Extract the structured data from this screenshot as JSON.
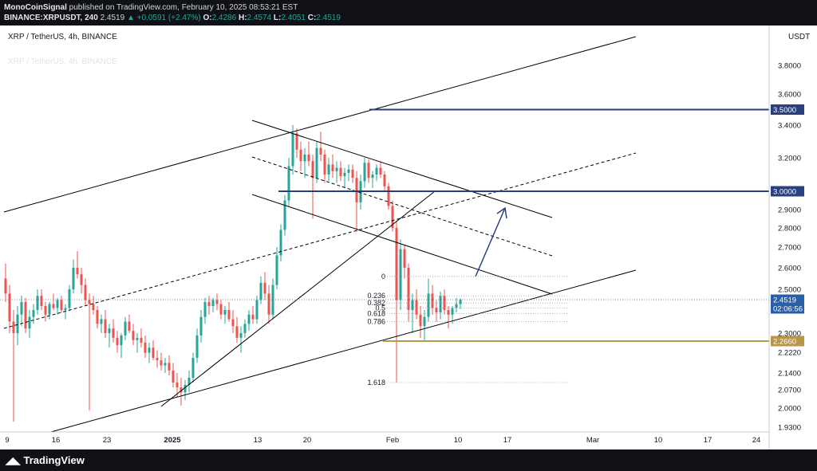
{
  "header": {
    "publisher": "MonoCoinSignal",
    "publish_text": "published on TradingView.com, February 10, 2025 08:53:21 EST",
    "symbol": "BINANCE:XRPUSDT, 240",
    "last": "2.4519",
    "change": "▲ +0.0591 (+2.47%)",
    "o_label": "O:",
    "o": "2.4286",
    "h_label": "H:",
    "h": "2.4574",
    "l_label": "L:",
    "l": "2.4051",
    "c_label": "C:",
    "c": "2.4519"
  },
  "legend": {
    "title": "XRP / TetherUS, 4h, BINANCE",
    "faded": "XRP / TetherUS, 4h, BINANCE"
  },
  "footer": {
    "brand": "TradingView"
  },
  "colors": {
    "up": "#26a69a",
    "down": "#ef5350",
    "level": "#2a3f7e",
    "support": "#b8964a",
    "trend": "#000000"
  },
  "chart_data": {
    "type": "candlestick",
    "title": "XRP / TetherUS, 4h, BINANCE",
    "currency": "USDT",
    "y_ticks": [
      3.8,
      3.6,
      3.4,
      3.2,
      2.9,
      2.8,
      2.7,
      2.6,
      2.5,
      2.3,
      2.222,
      2.14,
      2.07,
      2.0,
      1.93
    ],
    "y_tick_labels": [
      "3.8000",
      "3.6000",
      "3.4000",
      "3.2000",
      "2.9000",
      "2.8000",
      "2.7000",
      "2.6000",
      "2.5000",
      "2.3000",
      "2.2220",
      "2.1400",
      "2.0700",
      "2.0000",
      "1.9300"
    ],
    "x_ticks": [
      "9",
      "16",
      "23",
      "2025",
      "13",
      "20",
      "Feb",
      "10",
      "17",
      "Mar",
      "10",
      "17",
      "24"
    ],
    "price_labels": [
      {
        "label": "3.5000",
        "value": 3.5
      },
      {
        "label": "3.0000",
        "value": 3.0
      },
      {
        "label": "2.4519",
        "sub": "02:06:56",
        "value": 2.4519
      },
      {
        "label": "2.2660",
        "value": 2.266
      }
    ],
    "horizontal_levels": [
      {
        "name": "resistance-3.5",
        "value": 3.5
      },
      {
        "name": "resistance-3.0",
        "value": 3.0
      },
      {
        "name": "support-2.266",
        "value": 2.266
      }
    ],
    "fibonacci": [
      {
        "label": "0",
        "value": 2.56
      },
      {
        "label": "0.236",
        "value": 2.47
      },
      {
        "label": "0.382",
        "value": 2.435
      },
      {
        "label": "0.5",
        "value": 2.41
      },
      {
        "label": "0.618",
        "value": 2.385
      },
      {
        "label": "0.786",
        "value": 2.35
      },
      {
        "label": "1.618",
        "value": 2.1
      }
    ],
    "ohlc": [
      [
        2.55,
        2.62,
        2.44,
        2.48
      ],
      [
        2.48,
        2.52,
        2.3,
        2.35
      ],
      [
        2.35,
        2.4,
        1.95,
        2.3
      ],
      [
        2.3,
        2.42,
        2.25,
        2.38
      ],
      [
        2.38,
        2.47,
        2.33,
        2.44
      ],
      [
        2.44,
        2.46,
        2.3,
        2.32
      ],
      [
        2.32,
        2.4,
        2.28,
        2.37
      ],
      [
        2.37,
        2.43,
        2.34,
        2.4
      ],
      [
        2.4,
        2.5,
        2.38,
        2.47
      ],
      [
        2.47,
        2.5,
        2.4,
        2.42
      ],
      [
        2.42,
        2.44,
        2.35,
        2.38
      ],
      [
        2.38,
        2.44,
        2.36,
        2.43
      ],
      [
        2.43,
        2.48,
        2.4,
        2.41
      ],
      [
        2.41,
        2.46,
        2.38,
        2.45
      ],
      [
        2.45,
        2.47,
        2.39,
        2.4
      ],
      [
        2.4,
        2.43,
        2.36,
        2.41
      ],
      [
        2.41,
        2.52,
        2.4,
        2.5
      ],
      [
        2.5,
        2.64,
        2.48,
        2.6
      ],
      [
        2.6,
        2.68,
        2.55,
        2.57
      ],
      [
        2.57,
        2.6,
        2.48,
        2.52
      ],
      [
        2.52,
        2.55,
        2.42,
        2.45
      ],
      [
        2.45,
        2.48,
        1.99,
        2.43
      ],
      [
        2.43,
        2.47,
        2.38,
        2.4
      ],
      [
        2.4,
        2.42,
        2.32,
        2.34
      ],
      [
        2.34,
        2.38,
        2.3,
        2.36
      ],
      [
        2.36,
        2.4,
        2.28,
        2.3
      ],
      [
        2.3,
        2.34,
        2.24,
        2.32
      ],
      [
        2.32,
        2.36,
        2.26,
        2.28
      ],
      [
        2.28,
        2.31,
        2.22,
        2.25
      ],
      [
        2.25,
        2.3,
        2.2,
        2.29
      ],
      [
        2.29,
        2.37,
        2.27,
        2.35
      ],
      [
        2.35,
        2.38,
        2.3,
        2.31
      ],
      [
        2.31,
        2.34,
        2.25,
        2.27
      ],
      [
        2.27,
        2.3,
        2.22,
        2.28
      ],
      [
        2.28,
        2.32,
        2.24,
        2.26
      ],
      [
        2.26,
        2.29,
        2.2,
        2.22
      ],
      [
        2.22,
        2.26,
        2.18,
        2.24
      ],
      [
        2.24,
        2.27,
        2.19,
        2.2
      ],
      [
        2.2,
        2.23,
        2.16,
        2.19
      ],
      [
        2.19,
        2.22,
        2.15,
        2.17
      ],
      [
        2.17,
        2.2,
        2.14,
        2.18
      ],
      [
        2.18,
        2.21,
        2.13,
        2.15
      ],
      [
        2.15,
        2.18,
        2.08,
        2.1
      ],
      [
        2.1,
        2.14,
        2.04,
        2.08
      ],
      [
        2.08,
        2.12,
        2.01,
        2.06
      ],
      [
        2.06,
        2.11,
        2.03,
        2.09
      ],
      [
        2.09,
        2.15,
        2.06,
        2.12
      ],
      [
        2.12,
        2.22,
        2.1,
        2.2
      ],
      [
        2.2,
        2.32,
        2.18,
        2.29
      ],
      [
        2.29,
        2.4,
        2.26,
        2.37
      ],
      [
        2.37,
        2.46,
        2.34,
        2.44
      ],
      [
        2.44,
        2.47,
        2.38,
        2.42
      ],
      [
        2.42,
        2.46,
        2.39,
        2.45
      ],
      [
        2.45,
        2.48,
        2.4,
        2.43
      ],
      [
        2.43,
        2.45,
        2.36,
        2.38
      ],
      [
        2.38,
        2.42,
        2.34,
        2.4
      ],
      [
        2.4,
        2.44,
        2.35,
        2.36
      ],
      [
        2.36,
        2.4,
        2.3,
        2.33
      ],
      [
        2.33,
        2.37,
        2.26,
        2.28
      ],
      [
        2.28,
        2.33,
        2.22,
        2.3
      ],
      [
        2.3,
        2.36,
        2.28,
        2.34
      ],
      [
        2.34,
        2.4,
        2.31,
        2.38
      ],
      [
        2.38,
        2.42,
        2.34,
        2.36
      ],
      [
        2.36,
        2.47,
        2.34,
        2.45
      ],
      [
        2.45,
        2.56,
        2.43,
        2.53
      ],
      [
        2.53,
        2.58,
        2.45,
        2.48
      ],
      [
        2.48,
        2.52,
        2.34,
        2.38
      ],
      [
        2.38,
        2.55,
        2.36,
        2.52
      ],
      [
        2.52,
        2.7,
        2.5,
        2.66
      ],
      [
        2.66,
        2.82,
        2.63,
        2.79
      ],
      [
        2.79,
        2.98,
        2.76,
        2.95
      ],
      [
        2.95,
        3.2,
        2.92,
        3.15
      ],
      [
        3.15,
        3.4,
        3.1,
        3.35
      ],
      [
        3.35,
        3.38,
        3.2,
        3.25
      ],
      [
        3.25,
        3.3,
        3.12,
        3.18
      ],
      [
        3.18,
        3.26,
        3.08,
        3.22
      ],
      [
        3.22,
        3.3,
        3.15,
        3.18
      ],
      [
        3.18,
        3.22,
        2.85,
        3.08
      ],
      [
        3.08,
        3.3,
        3.05,
        3.26
      ],
      [
        3.26,
        3.36,
        3.18,
        3.22
      ],
      [
        3.22,
        3.25,
        3.05,
        3.1
      ],
      [
        3.1,
        3.2,
        3.06,
        3.16
      ],
      [
        3.16,
        3.22,
        3.08,
        3.12
      ],
      [
        3.12,
        3.18,
        3.05,
        3.14
      ],
      [
        3.14,
        3.18,
        3.06,
        3.09
      ],
      [
        3.09,
        3.14,
        3.02,
        3.11
      ],
      [
        3.11,
        3.16,
        3.06,
        3.13
      ],
      [
        3.13,
        3.16,
        3.05,
        3.08
      ],
      [
        3.08,
        3.12,
        2.78,
        2.94
      ],
      [
        2.94,
        3.1,
        2.9,
        3.06
      ],
      [
        3.06,
        3.2,
        3.02,
        3.17
      ],
      [
        3.17,
        3.19,
        3.05,
        3.08
      ],
      [
        3.08,
        3.12,
        3.02,
        3.1
      ],
      [
        3.1,
        3.16,
        3.06,
        3.14
      ],
      [
        3.14,
        3.18,
        3.08,
        3.1
      ],
      [
        3.1,
        3.12,
        3.0,
        3.03
      ],
      [
        3.03,
        3.05,
        2.9,
        2.92
      ],
      [
        2.92,
        2.95,
        2.78,
        2.8
      ],
      [
        2.8,
        2.84,
        2.1,
        2.45
      ],
      [
        2.45,
        2.74,
        2.4,
        2.69
      ],
      [
        2.69,
        2.71,
        2.55,
        2.6
      ],
      [
        2.6,
        2.62,
        2.35,
        2.4
      ],
      [
        2.4,
        2.48,
        2.3,
        2.45
      ],
      [
        2.45,
        2.5,
        2.36,
        2.38
      ],
      [
        2.38,
        2.42,
        2.28,
        2.33
      ],
      [
        2.33,
        2.4,
        2.27,
        2.37
      ],
      [
        2.37,
        2.55,
        2.35,
        2.48
      ],
      [
        2.48,
        2.52,
        2.38,
        2.41
      ],
      [
        2.41,
        2.45,
        2.35,
        2.39
      ],
      [
        2.39,
        2.49,
        2.36,
        2.47
      ],
      [
        2.47,
        2.5,
        2.38,
        2.4
      ],
      [
        2.4,
        2.42,
        2.32,
        2.38
      ],
      [
        2.38,
        2.42,
        2.34,
        2.41
      ],
      [
        2.41,
        2.46,
        2.39,
        2.43
      ],
      [
        2.43,
        2.4574,
        2.4051,
        2.4519
      ]
    ]
  }
}
